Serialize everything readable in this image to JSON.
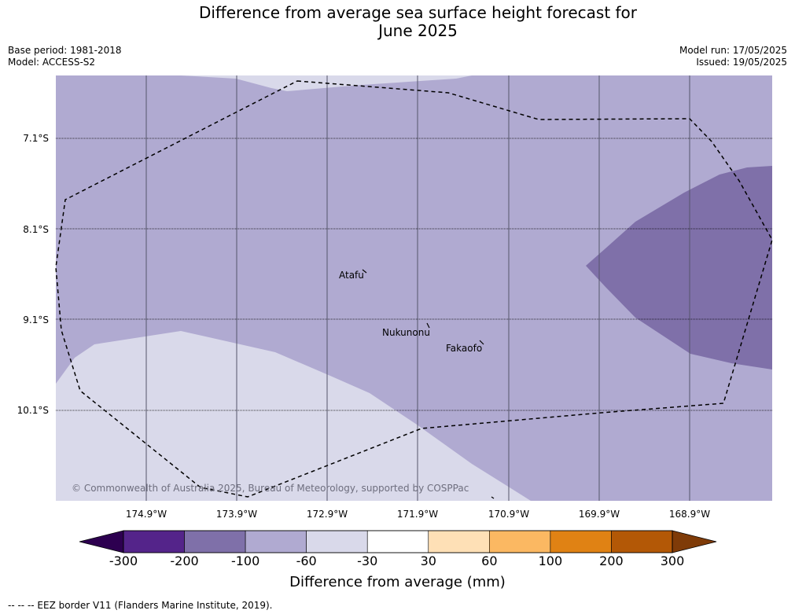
{
  "title_line1": "Difference from average sea surface height forecast for",
  "title_line2": "June 2025",
  "meta_left": [
    "Base period: 1981-2018",
    "Model: ACCESS-S2"
  ],
  "meta_right": [
    "Model run: 17/05/2025",
    "Issued: 19/05/2025"
  ],
  "lat_labels": [
    "7.1°S",
    "8.1°S",
    "9.1°S",
    "10.1°S"
  ],
  "lon_labels": [
    "174.9°W",
    "173.9°W",
    "172.9°W",
    "171.9°W",
    "170.9°W",
    "169.9°W",
    "168.9°W"
  ],
  "places": [
    "Atafu",
    "Nukunonu",
    "Fakaofo"
  ],
  "copyright": "© Commonwealth of Australia 2025, Bureau of Meteorology, supported by COSPPac",
  "colorbar": {
    "ticks": [
      "-300",
      "-200",
      "-100",
      "-60",
      "-30",
      "30",
      "60",
      "100",
      "200",
      "300"
    ],
    "colors": [
      "#2d0050",
      "#54248a",
      "#7f70a9",
      "#b0aad1",
      "#d9d9ea",
      "#ffffff",
      "#fee0b6",
      "#fbb862",
      "#e08214",
      "#b35806",
      "#7f3b08"
    ],
    "label": "Difference from average (mm)"
  },
  "footer": "--  --  -- EEZ border V11 (Flanders Marine Institute, 2019).",
  "colors": {
    "light": "#d9d9ea",
    "medium": "#b0aad1",
    "dark": "#7f70a9"
  }
}
